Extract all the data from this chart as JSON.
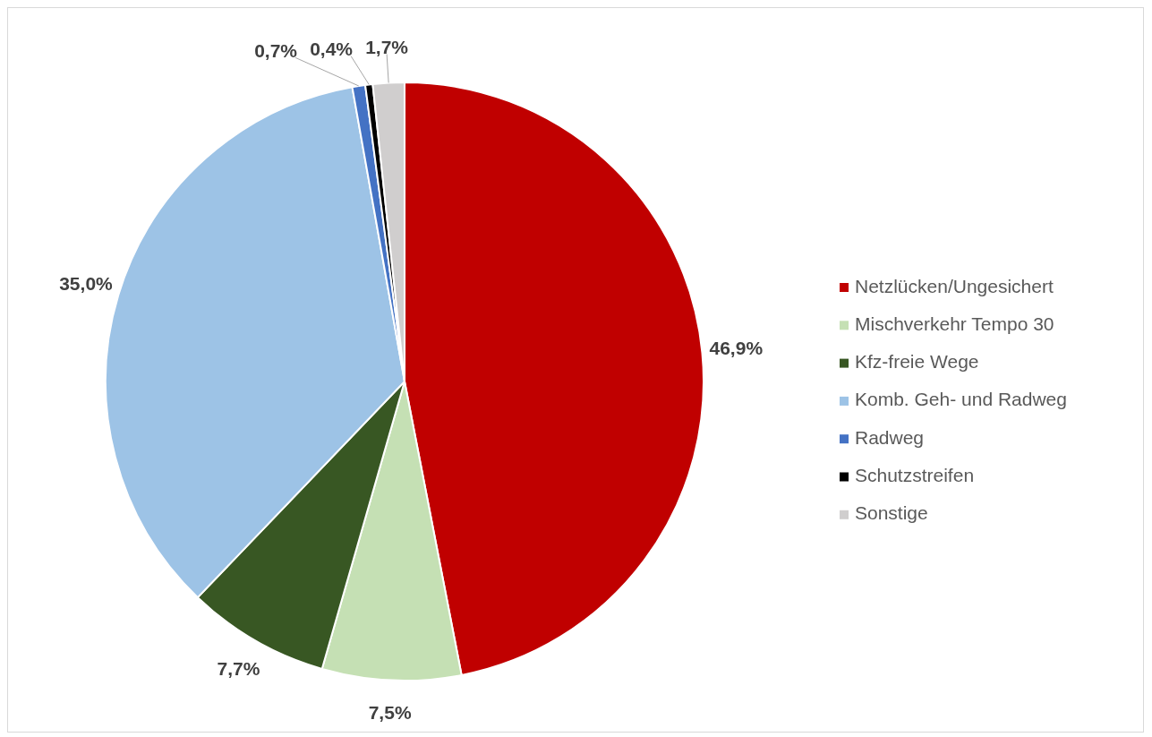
{
  "chart_data": {
    "type": "pie",
    "categories": [
      "Netzlücken/Ungesichert",
      "Mischverkehr Tempo 30",
      "Kfz-freie Wege",
      "Komb. Geh- und Radweg",
      "Radweg",
      "Schutzstreifen",
      "Sonstige"
    ],
    "values": [
      46.9,
      7.5,
      7.7,
      35.0,
      0.7,
      0.4,
      1.7
    ],
    "colors": [
      "#c00000",
      "#c5e0b4",
      "#385723",
      "#9dc3e6",
      "#4472c4",
      "#000000",
      "#d0cece"
    ],
    "value_labels": [
      "46,9%",
      "7,5%",
      "7,7%",
      "35,0%",
      "0,7%",
      "0,4%",
      "1,7%"
    ],
    "legend": "right"
  }
}
